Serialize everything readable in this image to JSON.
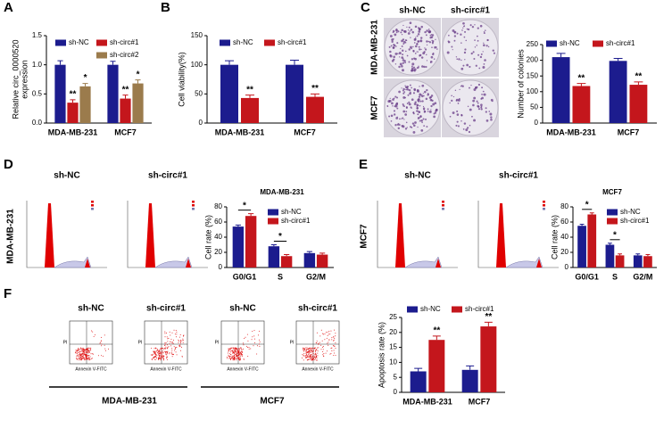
{
  "panels": [
    "A",
    "B",
    "C",
    "D",
    "E",
    "F"
  ],
  "colony_images": {
    "columns": [
      "sh-NC",
      "sh-circ#1"
    ],
    "rows": [
      "MDA-MB-231",
      "MCF7"
    ]
  },
  "cell_cycle_images": [
    {
      "row": "MDA-MB-231",
      "columns": [
        "sh-NC",
        "sh-circ#1"
      ]
    },
    {
      "row": "MCF7",
      "columns": [
        "sh-NC",
        "sh-circ#1"
      ]
    }
  ],
  "apoptosis_images": {
    "columns": [
      "sh-NC",
      "sh-circ#1",
      "sh-NC",
      "sh-circ#1"
    ],
    "x_axis": "Annexin V-FITC",
    "y_axis": "PI",
    "groups": [
      "MDA-MB-231",
      "MCF7"
    ]
  },
  "chart_data": [
    {
      "type": "bar",
      "ylabel": [
        "Relative circ_0000520",
        "expression"
      ],
      "categories": [
        "MDA-MB-231",
        "MCF7"
      ],
      "series": [
        {
          "name": "sh-NC",
          "color": "#1c1c8e",
          "values": [
            1.0,
            1.0
          ],
          "errors": [
            0.07,
            0.06
          ]
        },
        {
          "name": "sh-circ#1",
          "color": "#c4161c",
          "values": [
            0.35,
            0.42
          ],
          "errors": [
            0.05,
            0.06
          ],
          "significance": [
            "**",
            "**"
          ]
        },
        {
          "name": "sh-circ#2",
          "color": "#9b7b4c",
          "values": [
            0.63,
            0.68
          ],
          "errors": [
            0.05,
            0.06
          ],
          "significance": [
            "*",
            "*"
          ]
        }
      ],
      "ylim": [
        0,
        1.5
      ],
      "yticks": [
        {
          "value": 0,
          "label": "0.0"
        },
        {
          "value": 0.5,
          "label": "0.5"
        },
        {
          "value": 1.0,
          "label": "1.0"
        },
        {
          "value": 1.5,
          "label": "1.5"
        }
      ]
    },
    {
      "type": "bar",
      "ylabel": "Cell viability(%)",
      "categories": [
        "MDA-MB-231",
        "MCF7"
      ],
      "series": [
        {
          "name": "sh-NC",
          "color": "#1c1c8e",
          "values": [
            100,
            100
          ],
          "errors": [
            7,
            8
          ]
        },
        {
          "name": "sh-circ#1",
          "color": "#c4161c",
          "values": [
            43,
            45
          ],
          "errors": [
            5,
            5
          ],
          "significance": [
            "**",
            "**"
          ]
        }
      ],
      "ylim": [
        0,
        150
      ],
      "yticks": [
        0,
        50,
        100,
        150
      ]
    },
    {
      "type": "bar",
      "ylabel": "Number of colonies",
      "categories": [
        "MDA-MB-231",
        "MCF7"
      ],
      "series": [
        {
          "name": "sh-NC",
          "color": "#1c1c8e",
          "values": [
            210,
            198
          ],
          "errors": [
            12,
            8
          ]
        },
        {
          "name": "sh-circ#1",
          "color": "#c4161c",
          "values": [
            118,
            122
          ],
          "errors": [
            8,
            9
          ],
          "significance": [
            "**",
            "**"
          ]
        }
      ],
      "ylim": [
        0,
        250
      ],
      "yticks": [
        0,
        50,
        100,
        150,
        200,
        250
      ]
    },
    {
      "type": "bar",
      "title": "MDA-MB-231",
      "ylabel": "Cell rate (%)",
      "categories": [
        "G0/G1",
        "S",
        "G2/M"
      ],
      "sig_bracket": true,
      "series": [
        {
          "name": "sh-NC",
          "color": "#1c1c8e",
          "values": [
            54,
            28,
            19
          ],
          "errors": [
            2,
            2,
            2
          ]
        },
        {
          "name": "sh-circ#1",
          "color": "#c4161c",
          "values": [
            68,
            15,
            17
          ],
          "errors": [
            3,
            2,
            2
          ],
          "significance": [
            "*",
            "*",
            null
          ]
        }
      ],
      "ylim": [
        0,
        80
      ],
      "yticks": [
        0,
        20,
        40,
        60,
        80
      ]
    },
    {
      "type": "bar",
      "title": "MCF7",
      "ylabel": "Cell rate (%)",
      "categories": [
        "G0/G1",
        "S",
        "G2/M"
      ],
      "sig_bracket": true,
      "series": [
        {
          "name": "sh-NC",
          "color": "#1c1c8e",
          "values": [
            55,
            30,
            16
          ],
          "errors": [
            2,
            2,
            2
          ]
        },
        {
          "name": "sh-circ#1",
          "color": "#c4161c",
          "values": [
            70,
            16,
            15
          ],
          "errors": [
            2,
            2,
            2
          ],
          "significance": [
            "*",
            "*",
            null
          ]
        }
      ],
      "ylim": [
        0,
        80
      ],
      "yticks": [
        0,
        20,
        40,
        60,
        80
      ]
    },
    {
      "type": "bar",
      "ylabel": "Apoptosis rate (%)",
      "categories": [
        "MDA-MB-231",
        "MCF7"
      ],
      "series": [
        {
          "name": "sh-NC",
          "color": "#1c1c8e",
          "values": [
            7,
            7.5
          ],
          "errors": [
            1,
            1.3
          ]
        },
        {
          "name": "sh-circ#1",
          "color": "#c4161c",
          "values": [
            17.5,
            22
          ],
          "errors": [
            1.3,
            1.4
          ],
          "significance": [
            "**",
            "**"
          ]
        }
      ],
      "ylim": [
        0,
        25
      ],
      "yticks": [
        0,
        5,
        10,
        15,
        20,
        25
      ]
    }
  ]
}
